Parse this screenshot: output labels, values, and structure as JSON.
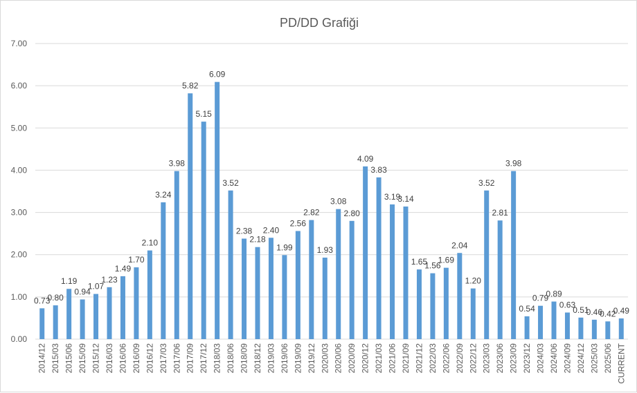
{
  "chart_data": {
    "type": "bar",
    "title": "PD/DD Grafiği",
    "categories": [
      "2014/12",
      "2015/03",
      "2015/06",
      "2015/09",
      "2015/12",
      "2016/03",
      "2016/06",
      "2016/09",
      "2016/12",
      "2017/03",
      "2017/06",
      "2017/09",
      "2017/12",
      "2018/03",
      "2018/06",
      "2018/09",
      "2018/12",
      "2019/03",
      "2019/06",
      "2019/09",
      "2019/12",
      "2020/03",
      "2020/06",
      "2020/09",
      "2020/12",
      "2021/03",
      "2021/06",
      "2021/09",
      "2021/12",
      "2022/03",
      "2022/06",
      "2022/09",
      "2022/12",
      "2023/03",
      "2023/06",
      "2023/09",
      "2023/12",
      "2024/03",
      "2024/06",
      "2024/09",
      "2024/12",
      "2025/03",
      "2025/06",
      "CURRENT"
    ],
    "values": [
      0.73,
      0.8,
      1.19,
      0.94,
      1.07,
      1.23,
      1.49,
      1.7,
      2.1,
      3.24,
      3.98,
      5.82,
      5.15,
      6.09,
      3.52,
      2.38,
      2.18,
      2.4,
      1.99,
      2.56,
      2.82,
      1.93,
      3.08,
      2.8,
      4.09,
      3.83,
      3.19,
      3.14,
      1.65,
      1.56,
      1.69,
      2.04,
      1.2,
      3.52,
      2.81,
      3.98,
      0.54,
      0.79,
      0.89,
      0.63,
      0.51,
      0.46,
      0.42,
      0.49
    ],
    "data_labels": [
      "0.73",
      "0.80",
      "1.19",
      "0.94",
      "1.07",
      "1.23",
      "1.49",
      "1.70",
      "2.10",
      "3.24",
      "3.98",
      "5.82",
      "5.15",
      "6.09",
      "3.52",
      "2.38",
      "2.18",
      "2.40",
      "1.99",
      "2.56",
      "2.82",
      "1.93",
      "3.08",
      "2.80",
      "4.09",
      "3.83",
      "3.19",
      "3.14",
      "1.65",
      "1.56",
      "1.69",
      "2.04",
      "1.20",
      "3.52",
      "2.81",
      "3.98",
      "0.54",
      "0.79",
      "0.89",
      "0.63",
      "0.51",
      "0.46",
      "0.42",
      "0.49"
    ],
    "y_ticks": [
      "0.00",
      "1.00",
      "2.00",
      "3.00",
      "4.00",
      "5.00",
      "6.00",
      "7.00"
    ],
    "ylim": [
      0,
      7
    ],
    "xlabel": "",
    "ylabel": "",
    "grid": true,
    "legend": "none",
    "bar_color": "#5b9bd5",
    "grid_color": "#d9d9d9",
    "text_color": "#595959"
  }
}
